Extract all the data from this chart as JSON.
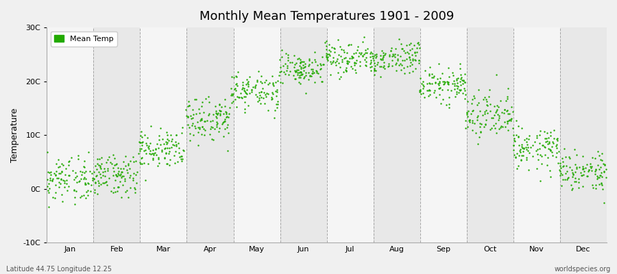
{
  "title": "Monthly Mean Temperatures 1901 - 2009",
  "ylabel": "Temperature",
  "xlabel_bottom_left": "Latitude 44.75 Longitude 12.25",
  "xlabel_bottom_right": "worldspecies.org",
  "legend_label": "Mean Temp",
  "ylim": [
    -10,
    30
  ],
  "yticks": [
    -10,
    0,
    10,
    20,
    30
  ],
  "ytick_labels": [
    "-10C",
    "0C",
    "10C",
    "20C",
    "30C"
  ],
  "months": [
    "Jan",
    "Feb",
    "Mar",
    "Apr",
    "May",
    "Jun",
    "Jul",
    "Aug",
    "Sep",
    "Oct",
    "Nov",
    "Dec"
  ],
  "dot_color": "#22aa00",
  "background_color": "#f0f0f0",
  "plot_bg_color_light": "#f5f5f5",
  "plot_bg_color_dark": "#e8e8e8",
  "grid_color": "#888888",
  "n_years": 109,
  "seed": 42,
  "monthly_means": [
    1.5,
    2.8,
    7.5,
    13.0,
    18.0,
    22.0,
    24.5,
    24.0,
    19.5,
    13.5,
    7.5,
    3.2
  ],
  "monthly_stds": [
    2.2,
    2.0,
    1.8,
    2.0,
    1.8,
    1.5,
    1.5,
    1.5,
    1.8,
    2.0,
    2.0,
    2.0
  ]
}
